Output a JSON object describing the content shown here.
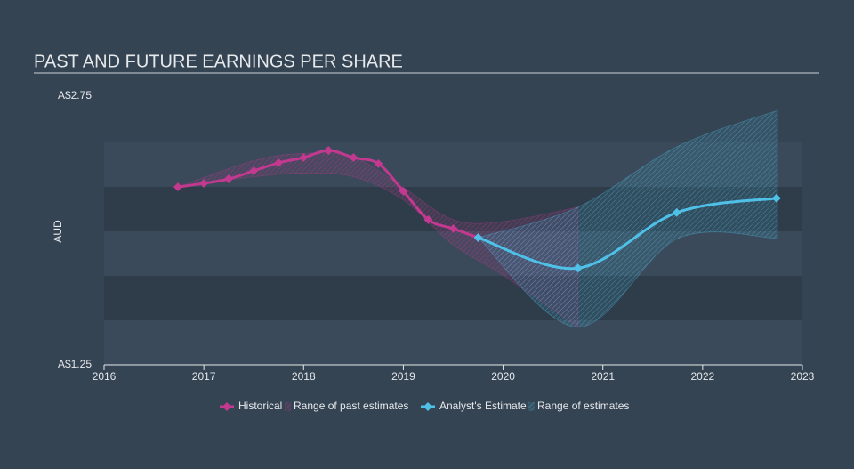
{
  "chart_data": {
    "type": "line",
    "title": "PAST AND FUTURE EARNINGS PER SHARE",
    "y_label": "AUD",
    "xlim": [
      2016,
      2023
    ],
    "xticks": [
      2016,
      2017,
      2018,
      2019,
      2020,
      2021,
      2022,
      2023
    ],
    "ylim": [
      1.25,
      2.75
    ],
    "yticks": [
      {
        "value": 1.25,
        "label": "A$1.25"
      },
      {
        "value": 2.75,
        "label": "A$2.75"
      }
    ],
    "series": [
      {
        "name": "Historical",
        "color": "#c2398f",
        "kind": "line",
        "x": [
          2016.74,
          2017.0,
          2017.25,
          2017.5,
          2017.75,
          2018.0,
          2018.25,
          2018.5,
          2018.75,
          2019.0,
          2019.25,
          2019.5,
          2019.75
        ],
        "values": [
          2.243,
          2.263,
          2.288,
          2.333,
          2.378,
          2.407,
          2.447,
          2.407,
          2.373,
          2.219,
          2.06,
          2.01,
          1.96
        ]
      },
      {
        "name": "Range of past estimates",
        "color": "#c2398f",
        "kind": "range",
        "x": [
          2016.74,
          2017.5,
          2018.0,
          2018.5,
          2019.0,
          2019.5,
          2020.0,
          2020.75
        ],
        "upper": [
          2.243,
          2.39,
          2.43,
          2.41,
          2.24,
          2.06,
          2.05,
          2.13
        ],
        "lower": [
          2.243,
          2.3,
          2.32,
          2.3,
          2.17,
          1.92,
          1.75,
          1.46
        ]
      },
      {
        "name": "Analyst's Estimate",
        "color": "#4fc1e9",
        "kind": "line",
        "x": [
          2019.75,
          2020.75,
          2021.74,
          2022.74
        ],
        "values": [
          1.96,
          1.79,
          2.1,
          2.18
        ]
      },
      {
        "name": "Range of estimates",
        "color": "#4fc1e9",
        "kind": "range",
        "x": [
          2019.75,
          2020.75,
          2021.75,
          2022.75
        ],
        "upper": [
          1.96,
          2.13,
          2.47,
          2.67
        ],
        "lower": [
          1.96,
          1.46,
          1.955,
          1.955
        ]
      }
    ]
  }
}
